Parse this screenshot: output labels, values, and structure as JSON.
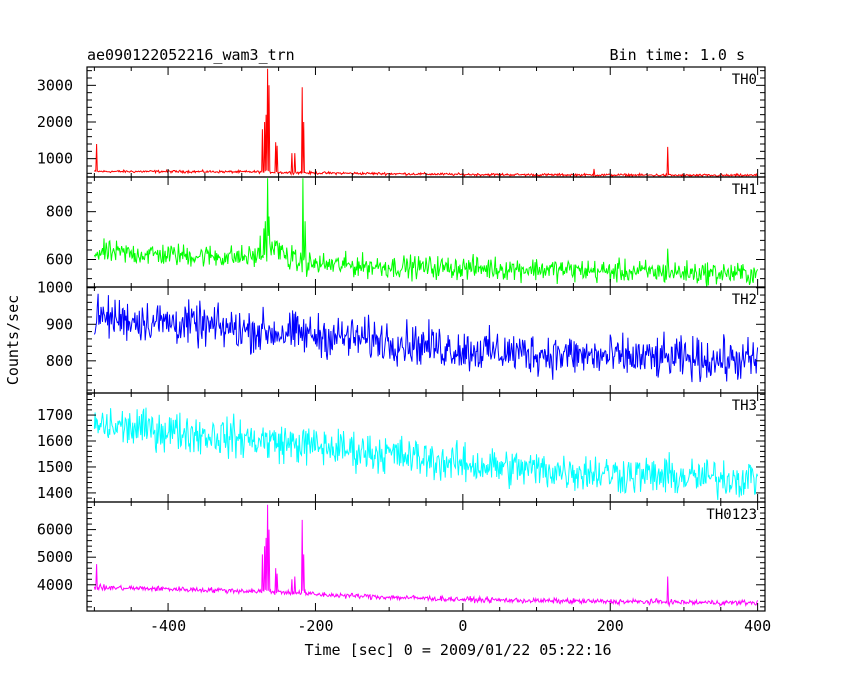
{
  "chart_data": {
    "type": "line",
    "title": "ae090122052216_wam3_trn",
    "bin_time": "Bin time: 1.0 s",
    "xlabel": "Time [sec] 0 = 2009/01/22 05:22:16",
    "ylabel": "Counts/sec",
    "xlim": [
      -510,
      410
    ],
    "xticks": [
      -400,
      -200,
      0,
      200,
      400
    ],
    "x_step": 1,
    "panels": [
      {
        "name": "TH0",
        "color": "#ff0000",
        "ylim": [
          500,
          3500
        ],
        "yticks": [
          1000,
          2000,
          3000
        ],
        "x": [
          -500,
          -400,
          -300,
          -270,
          -264,
          -255,
          -240,
          -225,
          -216,
          -210,
          -200,
          -100,
          0,
          100,
          200,
          278,
          300,
          400
        ],
        "y": [
          650,
          650,
          640,
          640,
          640,
          630,
          620,
          620,
          620,
          610,
          610,
          590,
          570,
          560,
          555,
          550,
          545,
          545
        ],
        "noise": 25,
        "spikes": [
          [
            -497,
            1400
          ],
          [
            -272,
            1800
          ],
          [
            -269,
            2000
          ],
          [
            -267,
            2200
          ],
          [
            -265,
            3450
          ],
          [
            -263,
            3000
          ],
          [
            -254,
            1450
          ],
          [
            -252,
            1350
          ],
          [
            -232,
            1150
          ],
          [
            -228,
            1150
          ],
          [
            -218,
            2950
          ],
          [
            -216,
            2000
          ],
          [
            178,
            720
          ],
          [
            278,
            1320
          ]
        ]
      },
      {
        "name": "TH1",
        "color": "#00ff00",
        "ylim": [
          485,
          945
        ],
        "yticks": [
          600,
          800
        ],
        "x": [
          -500,
          -400,
          -300,
          -270,
          -265,
          -250,
          -230,
          -216,
          -200,
          -100,
          0,
          100,
          200,
          278,
          300,
          400
        ],
        "y": [
          630,
          620,
          610,
          615,
          660,
          640,
          590,
          585,
          580,
          570,
          565,
          560,
          550,
          548,
          545,
          540
        ],
        "noise": 35,
        "spikes": [
          [
            -275,
            700
          ],
          [
            -270,
            730
          ],
          [
            -268,
            760
          ],
          [
            -265,
            940
          ],
          [
            -263,
            780
          ],
          [
            -255,
            680
          ],
          [
            -232,
            660
          ],
          [
            -217,
            940
          ],
          [
            -214,
            760
          ],
          [
            278,
            645
          ]
        ]
      },
      {
        "name": "TH2",
        "color": "#0000ff",
        "ylim": [
          712,
          1002
        ],
        "yticks": [
          800,
          900,
          1000
        ],
        "x": [
          -500,
          -400,
          -300,
          -200,
          -100,
          0,
          100,
          200,
          300,
          400
        ],
        "y": [
          920,
          905,
          885,
          870,
          855,
          830,
          820,
          810,
          805,
          800
        ],
        "noise": 42,
        "spikes": []
      },
      {
        "name": "TH3",
        "color": "#00ffff",
        "ylim": [
          1365,
          1785
        ],
        "yticks": [
          1400,
          1500,
          1600,
          1700
        ],
        "x": [
          -500,
          -400,
          -300,
          -200,
          -100,
          0,
          100,
          200,
          300,
          400
        ],
        "y": [
          1660,
          1640,
          1610,
          1580,
          1550,
          1510,
          1490,
          1475,
          1460,
          1455
        ],
        "noise": 55,
        "spikes": []
      },
      {
        "name": "TH0123",
        "color": "#ff00ff",
        "ylim": [
          3050,
          7000
        ],
        "yticks": [
          4000,
          5000,
          6000
        ],
        "x": [
          -500,
          -400,
          -300,
          -270,
          -264,
          -255,
          -216,
          -210,
          -200,
          -100,
          0,
          100,
          200,
          278,
          300,
          400
        ],
        "y": [
          3900,
          3850,
          3780,
          3760,
          3760,
          3740,
          3700,
          3680,
          3650,
          3550,
          3470,
          3420,
          3390,
          3380,
          3360,
          3350
        ],
        "noise": 70,
        "spikes": [
          [
            -497,
            4750
          ],
          [
            -272,
            5100
          ],
          [
            -269,
            5400
          ],
          [
            -267,
            5700
          ],
          [
            -265,
            6900
          ],
          [
            -263,
            6000
          ],
          [
            -254,
            4600
          ],
          [
            -252,
            4400
          ],
          [
            -232,
            4200
          ],
          [
            -228,
            4300
          ],
          [
            -218,
            6350
          ],
          [
            -216,
            5100
          ],
          [
            278,
            4300
          ]
        ]
      }
    ]
  }
}
